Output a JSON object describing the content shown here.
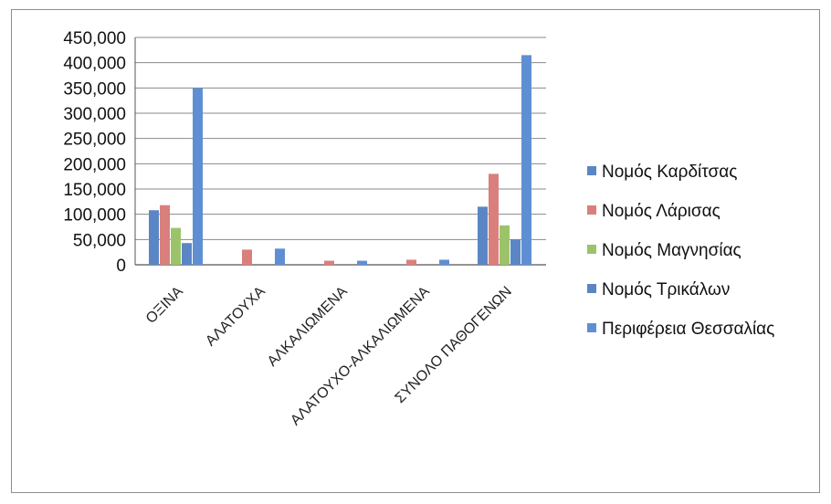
{
  "chart_data": {
    "type": "bar",
    "categories": [
      "ΟΞΙΝΑ",
      "ΑΛΑΤΟΥΧΑ",
      "ΑΛΚΑΛΙΩΜΕΝΑ",
      "ΑΛΑΤΟΥΧΟ-ΑΛΚΑΛΙΩΜΕΝΑ",
      "ΣΥΝΟΛΟ ΠΑΘΟΓΕΝΩΝ"
    ],
    "series": [
      {
        "name": "Νομός Καρδίτσας",
        "color": "#5b86c5",
        "values": [
          108000,
          0,
          0,
          0,
          115000
        ]
      },
      {
        "name": "Νομός Λάρισας",
        "color": "#d9807c",
        "values": [
          118000,
          30000,
          8000,
          10000,
          180000
        ]
      },
      {
        "name": "Νομός Μαγνησίας",
        "color": "#9bc46a",
        "values": [
          73000,
          0,
          0,
          0,
          78000
        ]
      },
      {
        "name": "Νομός Τρικάλων",
        "color": "#5b86c5",
        "values": [
          43000,
          0,
          0,
          0,
          50000
        ]
      },
      {
        "name": "Περιφέρεια Θεσσαλίας",
        "color": "#5f8fd3",
        "values": [
          350000,
          32000,
          8000,
          10000,
          415000
        ]
      }
    ],
    "ylim": [
      0,
      450000
    ],
    "yticks": [
      "450,000",
      "400,000",
      "350,000",
      "300,000",
      "250,000",
      "200,000",
      "150,000",
      "100,000",
      "50,000",
      "0"
    ],
    "grid": true,
    "legend_position": "right"
  }
}
